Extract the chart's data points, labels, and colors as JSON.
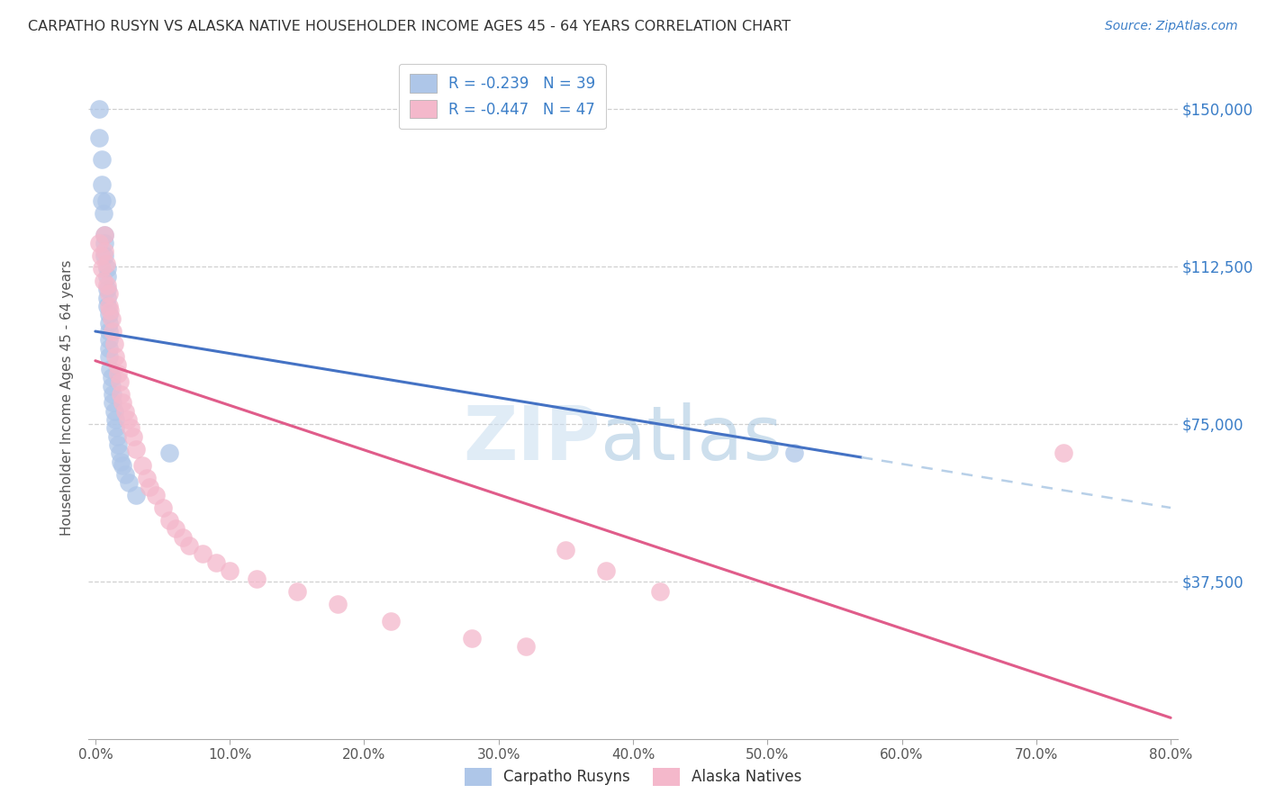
{
  "title": "CARPATHO RUSYN VS ALASKA NATIVE HOUSEHOLDER INCOME AGES 45 - 64 YEARS CORRELATION CHART",
  "source": "Source: ZipAtlas.com",
  "ylabel": "Householder Income Ages 45 - 64 years",
  "xlabel_ticks": [
    "0.0%",
    "10.0%",
    "20.0%",
    "30.0%",
    "40.0%",
    "50.0%",
    "60.0%",
    "70.0%",
    "80.0%"
  ],
  "xlabel_vals": [
    0.0,
    0.1,
    0.2,
    0.3,
    0.4,
    0.5,
    0.6,
    0.7,
    0.8
  ],
  "ytick_labels": [
    "$37,500",
    "$75,000",
    "$112,500",
    "$150,000"
  ],
  "ytick_vals": [
    37500,
    75000,
    112500,
    150000
  ],
  "xlim": [
    -0.005,
    0.805
  ],
  "ylim": [
    0,
    162500
  ],
  "legend_r1": "R = -0.239   N = 39",
  "legend_r2": "R = -0.447   N = 47",
  "watermark_zip": "ZIP",
  "watermark_atlas": "atlas",
  "blue_color": "#aec6e8",
  "pink_color": "#f4b8cb",
  "line_blue": "#4472c4",
  "line_pink": "#e05c8a",
  "line_dash": "#b8d0e8",
  "title_color": "#404040",
  "grid_color": "#d0d0d0",
  "background_color": "#ffffff",
  "carpatho_x": [
    0.003,
    0.003,
    0.005,
    0.005,
    0.005,
    0.006,
    0.007,
    0.007,
    0.007,
    0.008,
    0.009,
    0.009,
    0.009,
    0.009,
    0.009,
    0.01,
    0.01,
    0.01,
    0.01,
    0.01,
    0.01,
    0.011,
    0.012,
    0.012,
    0.013,
    0.013,
    0.014,
    0.015,
    0.015,
    0.016,
    0.017,
    0.018,
    0.019,
    0.02,
    0.022,
    0.025,
    0.03,
    0.055,
    0.52
  ],
  "carpatho_y": [
    150000,
    143000,
    138000,
    132000,
    128000,
    125000,
    120000,
    118000,
    115000,
    128000,
    112000,
    110000,
    107000,
    105000,
    103000,
    101000,
    99000,
    97000,
    95000,
    93000,
    91000,
    88000,
    86000,
    84000,
    82000,
    80000,
    78000,
    76000,
    74000,
    72000,
    70000,
    68000,
    66000,
    65000,
    63000,
    61000,
    58000,
    68000,
    68000
  ],
  "alaska_x": [
    0.003,
    0.004,
    0.005,
    0.006,
    0.007,
    0.007,
    0.008,
    0.009,
    0.01,
    0.01,
    0.011,
    0.012,
    0.013,
    0.014,
    0.015,
    0.016,
    0.017,
    0.018,
    0.019,
    0.02,
    0.022,
    0.024,
    0.026,
    0.028,
    0.03,
    0.035,
    0.038,
    0.04,
    0.045,
    0.05,
    0.055,
    0.06,
    0.065,
    0.07,
    0.08,
    0.09,
    0.1,
    0.12,
    0.15,
    0.18,
    0.22,
    0.28,
    0.32,
    0.35,
    0.38,
    0.42,
    0.72
  ],
  "alaska_y": [
    118000,
    115000,
    112000,
    109000,
    120000,
    116000,
    113000,
    108000,
    106000,
    103000,
    102000,
    100000,
    97000,
    94000,
    91000,
    89000,
    87000,
    85000,
    82000,
    80000,
    78000,
    76000,
    74000,
    72000,
    69000,
    65000,
    62000,
    60000,
    58000,
    55000,
    52000,
    50000,
    48000,
    46000,
    44000,
    42000,
    40000,
    38000,
    35000,
    32000,
    28000,
    24000,
    22000,
    45000,
    40000,
    35000,
    68000
  ],
  "blue_line_x0": 0.0,
  "blue_line_x1": 0.57,
  "blue_line_y0": 97000,
  "blue_line_y1": 67000,
  "pink_line_x0": 0.0,
  "pink_line_x1": 0.8,
  "pink_line_y0": 90000,
  "pink_line_y1": 5000,
  "dash_line_x0": 0.57,
  "dash_line_x1": 0.8,
  "dash_line_y0": 67000,
  "dash_line_y1": 55000
}
